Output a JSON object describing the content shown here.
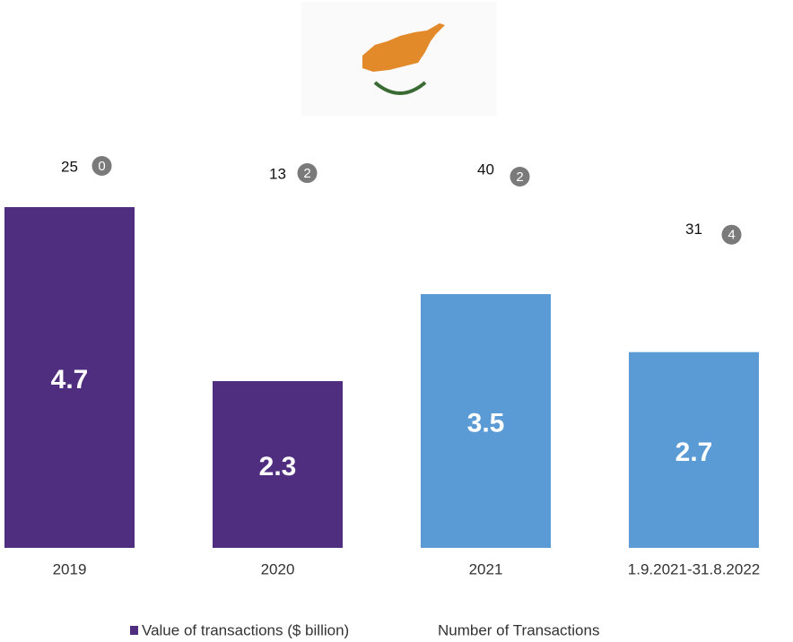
{
  "chart_data": {
    "type": "bar",
    "categories": [
      "2019",
      "2020",
      "2021",
      "1.9.2021-31.8.2022"
    ],
    "series": [
      {
        "name": "Value of transactions ($ billion)",
        "color": "#4f2d7f",
        "colors": [
          "#4f2d7f",
          "#4f2d7f",
          "#5b9bd5",
          "#5b9bd5"
        ],
        "values": [
          4.7,
          2.3,
          3.5,
          2.7
        ]
      },
      {
        "name": "Number of Transactions",
        "values": [
          25,
          13,
          40,
          31
        ]
      }
    ],
    "badges": [
      0,
      2,
      2,
      4
    ]
  }
}
